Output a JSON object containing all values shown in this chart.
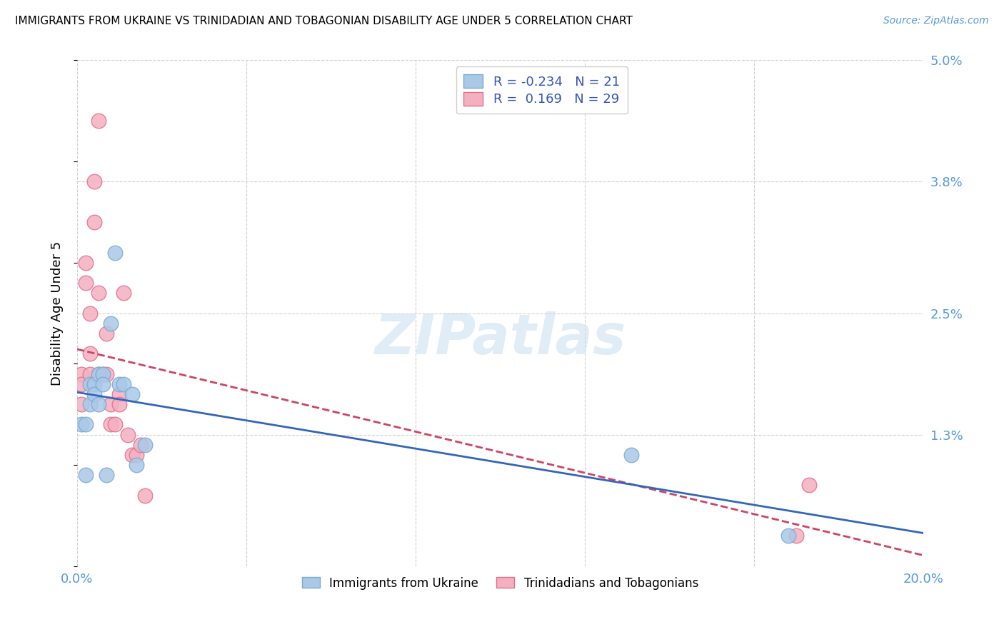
{
  "title": "IMMIGRANTS FROM UKRAINE VS TRINIDADIAN AND TOBAGONIAN DISABILITY AGE UNDER 5 CORRELATION CHART",
  "source": "Source: ZipAtlas.com",
  "ylabel": "Disability Age Under 5",
  "xlim": [
    0.0,
    0.2
  ],
  "ylim": [
    0.0,
    0.05
  ],
  "xticks": [
    0.0,
    0.04,
    0.08,
    0.12,
    0.16,
    0.2
  ],
  "yticks": [
    0.0,
    0.013,
    0.025,
    0.038,
    0.05
  ],
  "yticklabels": [
    "",
    "1.3%",
    "2.5%",
    "3.8%",
    "5.0%"
  ],
  "background_color": "#ffffff",
  "grid_color": "#d0d0d0",
  "watermark": "ZIPatlas",
  "ukraine_color": "#aac8e8",
  "ukraine_edge": "#7aaad0",
  "trinidad_color": "#f5b0c0",
  "trinidad_edge": "#e07090",
  "ukraine_R": -0.234,
  "ukraine_N": 21,
  "trinidad_R": 0.169,
  "trinidad_N": 29,
  "ukraine_line_color": "#3366bb",
  "trinidad_line_color": "#cc4466",
  "ukraine_x": [
    0.001,
    0.002,
    0.002,
    0.003,
    0.003,
    0.004,
    0.004,
    0.005,
    0.005,
    0.006,
    0.006,
    0.007,
    0.008,
    0.009,
    0.01,
    0.011,
    0.013,
    0.014,
    0.016,
    0.131,
    0.168
  ],
  "ukraine_y": [
    0.014,
    0.014,
    0.009,
    0.016,
    0.018,
    0.018,
    0.017,
    0.019,
    0.016,
    0.019,
    0.018,
    0.009,
    0.024,
    0.031,
    0.018,
    0.018,
    0.017,
    0.01,
    0.012,
    0.011,
    0.003
  ],
  "trinidad_x": [
    0.001,
    0.001,
    0.001,
    0.002,
    0.002,
    0.003,
    0.003,
    0.003,
    0.004,
    0.004,
    0.005,
    0.005,
    0.005,
    0.006,
    0.007,
    0.007,
    0.008,
    0.008,
    0.009,
    0.01,
    0.01,
    0.011,
    0.012,
    0.013,
    0.014,
    0.015,
    0.016,
    0.17,
    0.173
  ],
  "trinidad_y": [
    0.019,
    0.018,
    0.016,
    0.028,
    0.03,
    0.021,
    0.025,
    0.019,
    0.038,
    0.034,
    0.044,
    0.027,
    0.019,
    0.019,
    0.019,
    0.023,
    0.014,
    0.016,
    0.014,
    0.017,
    0.016,
    0.027,
    0.013,
    0.011,
    0.011,
    0.012,
    0.007,
    0.003,
    0.008
  ]
}
